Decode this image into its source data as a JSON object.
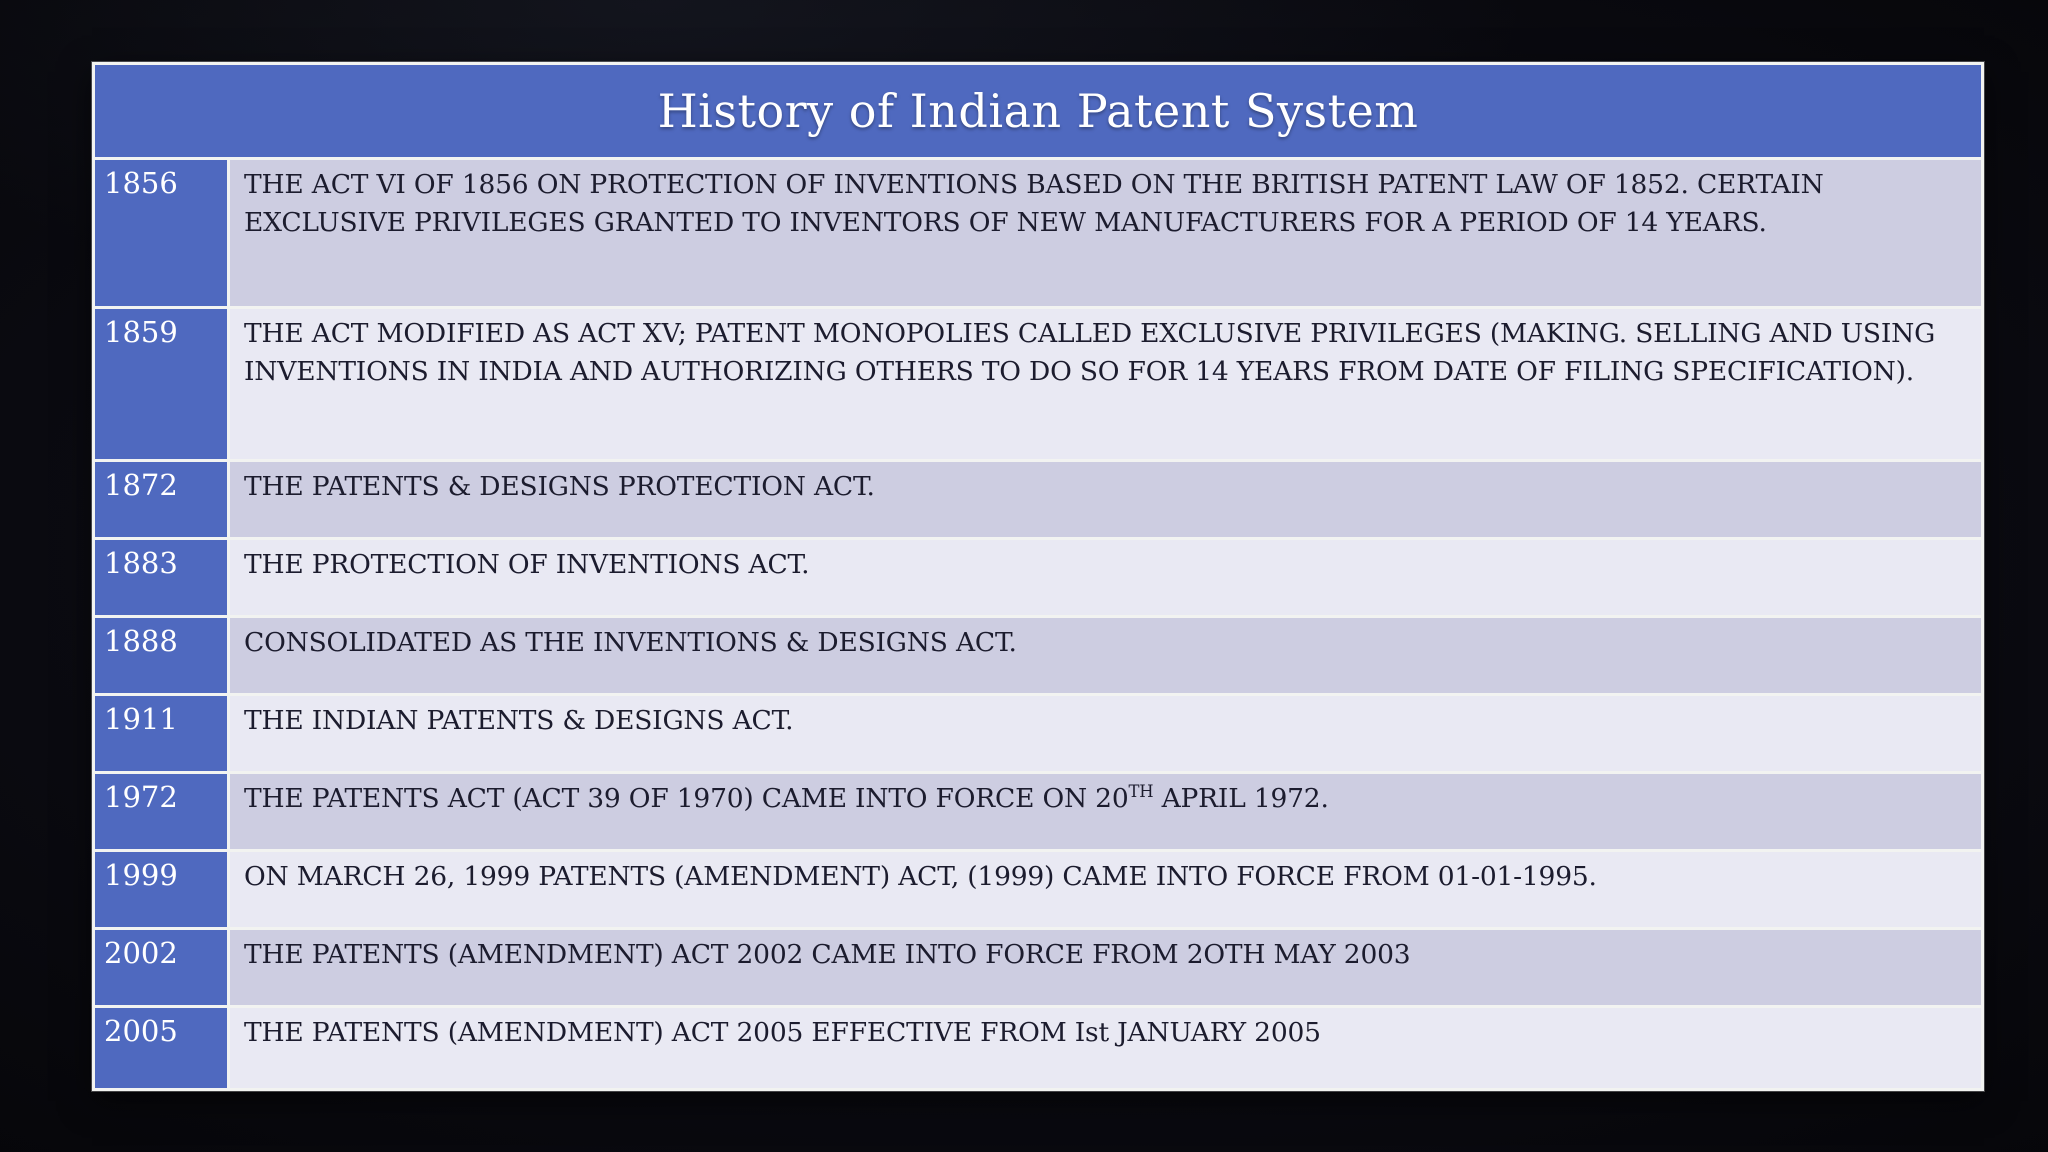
{
  "slide": {
    "title": "History of Indian Patent System",
    "table": {
      "rows": [
        {
          "year": "1856",
          "text": "THE ACT VI OF 1856 ON PROTECTION OF INVENTIONS BASED ON THE BRITISH PATENT LAW OF 1852. CERTAIN EXCLUSIVE PRIVILEGES GRANTED TO INVENTORS OF NEW MANUFACTURERS FOR A PERIOD OF 14 YEARS."
        },
        {
          "year": "1859",
          "text": "THE ACT MODIFIED AS ACT XV; PATENT MONOPOLIES CALLED EXCLUSIVE PRIVILEGES (MAKING. SELLING AND USING INVENTIONS IN INDIA AND AUTHORIZING OTHERS TO DO SO FOR 14 YEARS FROM DATE OF FILING SPECIFICATION)."
        },
        {
          "year": "1872",
          "text": "THE PATENTS & DESIGNS PROTECTION ACT."
        },
        {
          "year": "1883",
          "text": "THE PROTECTION OF INVENTIONS ACT."
        },
        {
          "year": "1888",
          "text": "CONSOLIDATED AS THE INVENTIONS & DESIGNS ACT."
        },
        {
          "year": "1911",
          "text": "THE INDIAN PATENTS & DESIGNS ACT."
        },
        {
          "year": "1972",
          "text": "THE PATENTS ACT (ACT 39 OF 1970) CAME INTO FORCE ON 20^{TH} APRIL 1972."
        },
        {
          "year": "1999",
          "text": "ON MARCH 26, 1999 PATENTS (AMENDMENT) ACT, (1999) CAME INTO FORCE FROM 01-01-1995."
        },
        {
          "year": "2002",
          "text": "THE PATENTS (AMENDMENT) ACT 2002 CAME INTO FORCE FROM 2OTH MAY 2003"
        },
        {
          "year": "2005",
          "text": "THE PATENTS (AMENDMENT) ACT 2005 EFFECTIVE FROM Ist JANUARY 2005"
        }
      ]
    },
    "colors": {
      "header_bg": "#4f69bf",
      "year_cell_bg": "#4f69bf",
      "row_dark": "#cdcde1",
      "row_light": "#e9e9f3",
      "grid_border": "#f2f3f1",
      "title_text": "#ffffff",
      "body_text": "#1c1c2e",
      "slide_background": "#0a0a10"
    }
  }
}
